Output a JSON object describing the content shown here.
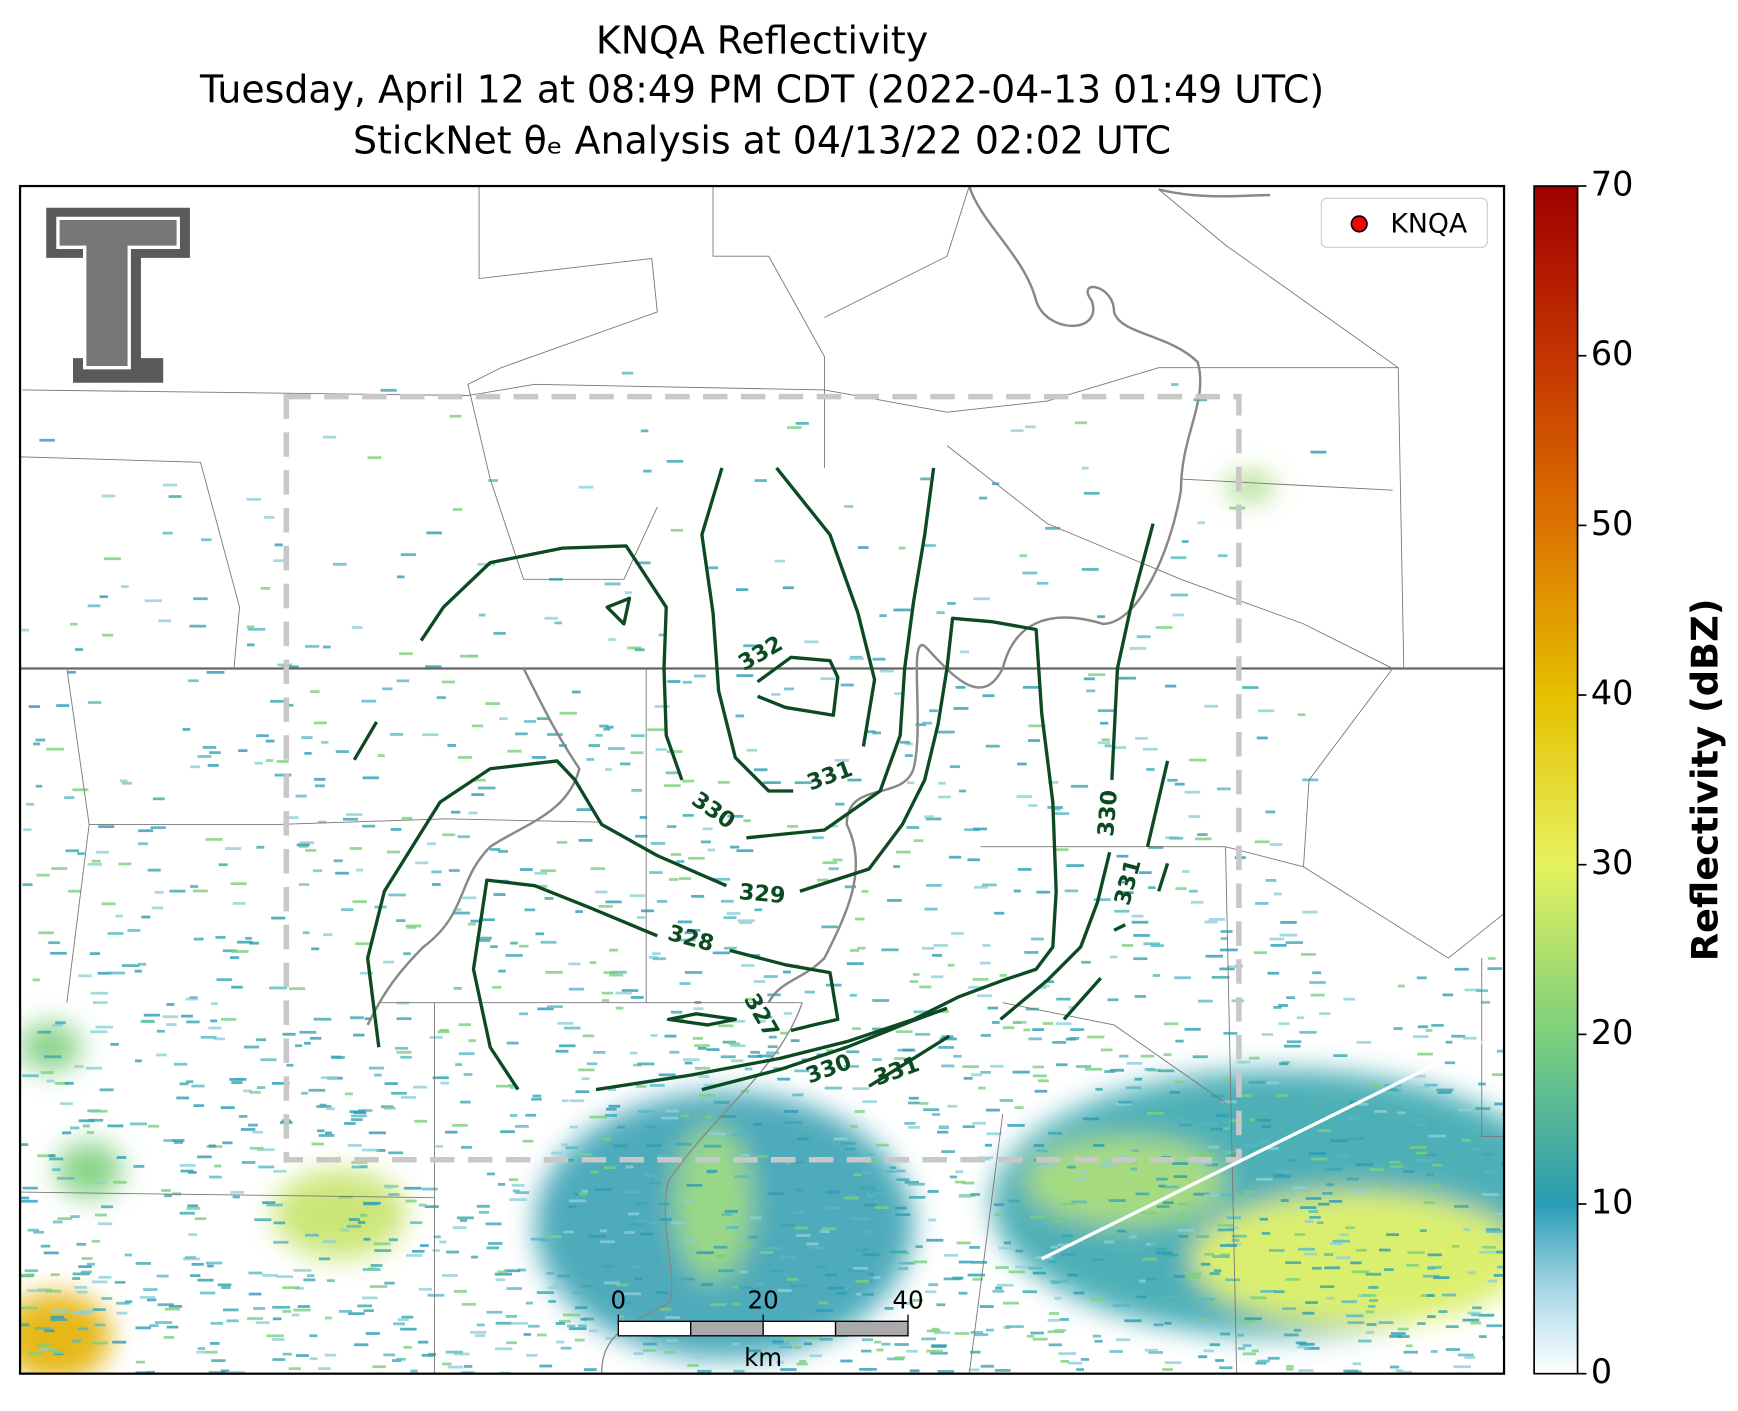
{
  "title": [
    "KNQA Reflectivity",
    "Tuesday, April 12 at 08:49 PM CDT (2022-04-13 01:49 UTC)",
    "StickNet θₑ Analysis at 04/13/22 02:02 UTC"
  ],
  "legend": "KNQA",
  "colorbar": {
    "label": "Reflectivity (dBZ)",
    "lim": [
      0,
      70
    ],
    "ticks": [
      0,
      10,
      20,
      30,
      40,
      50,
      60,
      70
    ]
  },
  "contour_labels": [
    332,
    331,
    330,
    329,
    328,
    327,
    330,
    331,
    330,
    331
  ],
  "scale_bar": {
    "lim": [
      0,
      40
    ],
    "ticks": [
      0,
      20,
      40
    ],
    "unit": "km"
  }
}
